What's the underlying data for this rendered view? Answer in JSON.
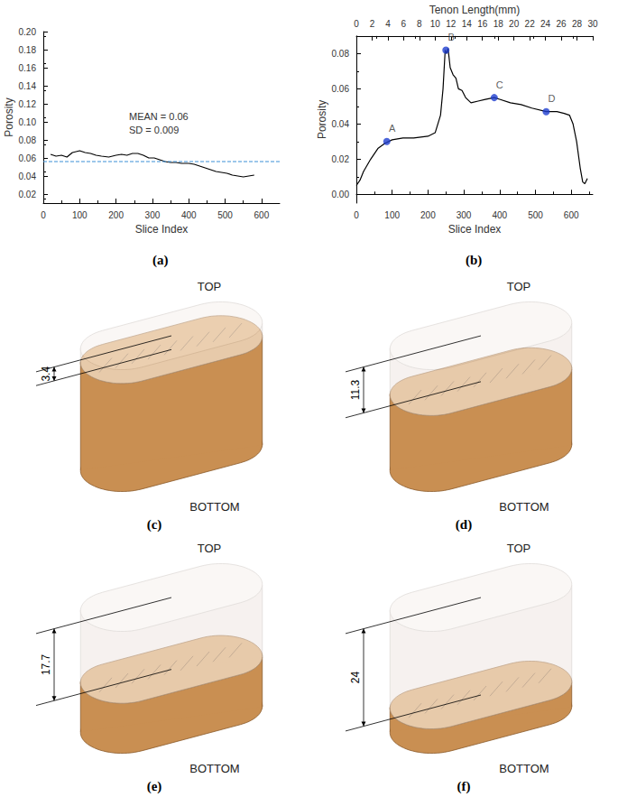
{
  "chart_data": [
    {
      "panel": "(a)",
      "type": "line",
      "xlabel": "Slice Index",
      "ylabel": "Porosity",
      "xlim": [
        0,
        650
      ],
      "xticks": [
        0,
        100,
        200,
        300,
        400,
        500,
        600
      ],
      "ylim": [
        0.01,
        0.2
      ],
      "yticks": [
        0.02,
        0.04,
        0.06,
        0.08,
        {
          "value": 0.1,
          "label": "0.10"
        },
        0.12,
        0.14,
        0.16,
        0.18,
        {
          "value": 0.2,
          "label": "0.20"
        }
      ],
      "annotations": [
        "MEAN = 0.06",
        "SD = 0.009"
      ],
      "grid": false,
      "series": [
        {
          "color": "#000000",
          "line_style": "solid",
          "x": [
            20,
            35,
            50,
            65,
            80,
            100,
            115,
            130,
            145,
            160,
            180,
            200,
            215,
            230,
            245,
            260,
            275,
            290,
            305,
            320,
            335,
            350,
            365,
            380,
            400,
            415,
            430,
            445,
            460,
            475,
            490,
            505,
            520,
            535,
            550,
            565,
            580
          ],
          "values": [
            0.064,
            0.062,
            0.063,
            0.061,
            0.066,
            0.068,
            0.066,
            0.065,
            0.063,
            0.062,
            0.061,
            0.063,
            0.064,
            0.063,
            0.065,
            0.065,
            0.063,
            0.06,
            0.06,
            0.058,
            0.056,
            0.055,
            0.055,
            0.054,
            0.054,
            0.053,
            0.051,
            0.049,
            0.047,
            0.045,
            0.044,
            0.043,
            0.041,
            0.04,
            0.039,
            0.04,
            0.041
          ]
        },
        {
          "color": "#3b8fd6",
          "line_style": "dashed",
          "x": [
            0,
            650
          ],
          "values": [
            0.056,
            0.056
          ]
        }
      ]
    },
    {
      "panel": "(b)",
      "type": "line",
      "xlabel": "Slice Index",
      "x2label": "Tenon Length(mm)",
      "ylabel": "Porosity",
      "xlim": [
        0,
        660
      ],
      "xticks": [
        0,
        100,
        200,
        300,
        400,
        500,
        600
      ],
      "x2lim": [
        0,
        30
      ],
      "x2ticks": [
        0,
        2,
        4,
        6,
        8,
        10,
        12,
        14,
        16,
        18,
        20,
        22,
        24,
        26,
        28,
        30
      ],
      "ylim": [
        -0.005,
        0.09
      ],
      "yticks": [
        {
          "value": 0,
          "label": "0.00"
        },
        0.02,
        0.04,
        0.06,
        0.08
      ],
      "grid": false,
      "series": [
        {
          "color": "#000000",
          "line_style": "solid",
          "x": [
            0,
            10,
            20,
            40,
            60,
            80,
            100,
            130,
            160,
            200,
            220,
            235,
            242,
            248,
            252,
            256,
            262,
            270,
            278,
            285,
            295,
            305,
            320,
            340,
            360,
            385,
            400,
            430,
            460,
            490,
            530,
            560,
            580,
            595,
            605,
            615,
            625,
            632,
            638,
            645
          ],
          "values": [
            0.005,
            0.008,
            0.013,
            0.02,
            0.026,
            0.029,
            0.031,
            0.032,
            0.032,
            0.033,
            0.035,
            0.045,
            0.06,
            0.082,
            0.08,
            0.083,
            0.072,
            0.068,
            0.066,
            0.06,
            0.059,
            0.055,
            0.052,
            0.053,
            0.054,
            0.055,
            0.054,
            0.052,
            0.051,
            0.049,
            0.047,
            0.047,
            0.046,
            0.045,
            0.04,
            0.03,
            0.015,
            0.007,
            0.006,
            0.009
          ]
        },
        {
          "type": "scatter",
          "color": "#1f3fd0",
          "marker": "circle",
          "x": [
            85,
            250,
            385,
            530
          ],
          "values": [
            0.03,
            0.082,
            0.055,
            0.047
          ],
          "labels": [
            "A",
            "B",
            "C",
            "D"
          ]
        }
      ]
    }
  ],
  "renders": [
    {
      "panel": "(c)",
      "top": "TOP",
      "bottom": "BOTTOM",
      "dimension": 3.4
    },
    {
      "panel": "(d)",
      "top": "TOP",
      "bottom": "BOTTOM",
      "dimension": 11.3
    },
    {
      "panel": "(e)",
      "top": "TOP",
      "bottom": "BOTTOM",
      "dimension": 17.7
    },
    {
      "panel": "(f)",
      "top": "TOP",
      "bottom": "BOTTOM",
      "dimension": 24
    }
  ]
}
